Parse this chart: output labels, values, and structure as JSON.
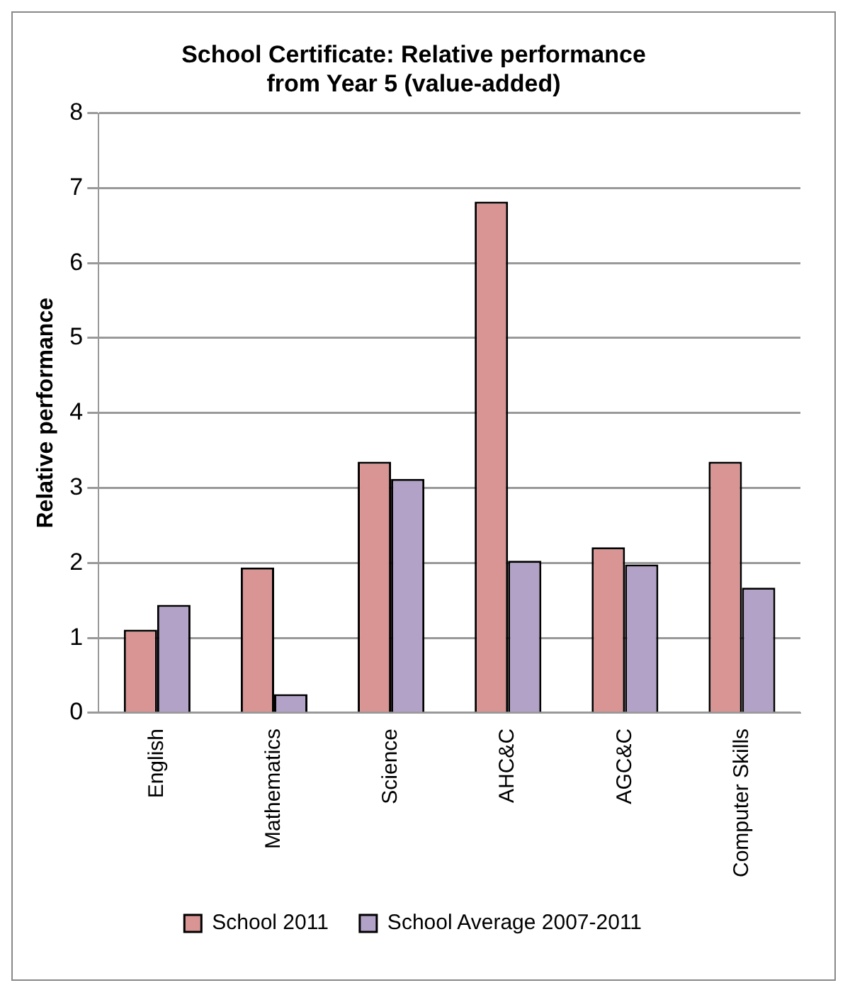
{
  "chart_data": {
    "type": "bar",
    "title": "School Certificate: Relative performance\nfrom Year 5 (value-added)",
    "ylabel": "Relative performance",
    "categories": [
      "English",
      "Mathematics",
      "Science",
      "AHC&C",
      "AGC&C",
      "Computer Skills"
    ],
    "series": [
      {
        "name": "School 2011",
        "color": "#d99594",
        "values": [
          1.11,
          1.94,
          3.35,
          6.82,
          2.21,
          3.35
        ]
      },
      {
        "name": "School Average 2007-2011",
        "color": "#b2a2c7",
        "values": [
          1.44,
          0.25,
          3.12,
          2.03,
          1.98,
          1.67
        ]
      }
    ],
    "ylim": [
      0,
      8
    ],
    "yticks": [
      0,
      1,
      2,
      3,
      4,
      5,
      6,
      7,
      8
    ],
    "grid": "y",
    "legend": "bottom"
  }
}
